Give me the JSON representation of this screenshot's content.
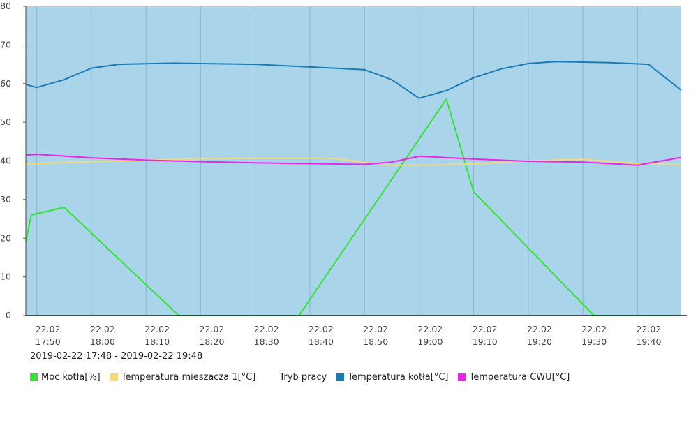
{
  "chart_data": {
    "type": "line",
    "ylim": [
      0,
      80
    ],
    "yticks": [
      0,
      10,
      20,
      30,
      40,
      50,
      60,
      70,
      80
    ],
    "x_range": [
      "2019-02-22 17:48",
      "2019-02-22 19:48"
    ],
    "x_ticks": [
      {
        "t": "2019-02-22 17:50",
        "date": "22.02",
        "time": "17:50"
      },
      {
        "t": "2019-02-22 18:00",
        "date": "22.02",
        "time": "18:00"
      },
      {
        "t": "2019-02-22 18:10",
        "date": "22.02",
        "time": "18:10"
      },
      {
        "t": "2019-02-22 18:20",
        "date": "22.02",
        "time": "18:20"
      },
      {
        "t": "2019-02-22 18:30",
        "date": "22.02",
        "time": "18:30"
      },
      {
        "t": "2019-02-22 18:40",
        "date": "22.02",
        "time": "18:40"
      },
      {
        "t": "2019-02-22 18:50",
        "date": "22.02",
        "time": "18:50"
      },
      {
        "t": "2019-02-22 19:00",
        "date": "22.02",
        "time": "19:00"
      },
      {
        "t": "2019-02-22 19:10",
        "date": "22.02",
        "time": "19:10"
      },
      {
        "t": "2019-02-22 19:20",
        "date": "22.02",
        "time": "19:20"
      },
      {
        "t": "2019-02-22 19:30",
        "date": "22.02",
        "time": "19:30"
      },
      {
        "t": "2019-02-22 19:40",
        "date": "22.02",
        "time": "19:40"
      }
    ],
    "bands": [
      {
        "series": "Tryb pracy",
        "from": "2019-02-22 17:48",
        "to": "2019-02-22 19:48",
        "color": "#aad4ea"
      }
    ],
    "series": [
      {
        "name": "Moc kotła[%]",
        "color": "#33e333",
        "points": [
          [
            "2019-02-22 17:48",
            19
          ],
          [
            "2019-02-22 17:49",
            26
          ],
          [
            "2019-02-22 17:55",
            28
          ],
          [
            "2019-02-22 18:16",
            0
          ],
          [
            "2019-02-22 18:38",
            0
          ],
          [
            "2019-02-22 19:05",
            56
          ],
          [
            "2019-02-22 19:10",
            32
          ],
          [
            "2019-02-22 19:32",
            0
          ],
          [
            "2019-02-22 19:48",
            0
          ]
        ]
      },
      {
        "name": "Temperatura mieszacza 1[°C]",
        "color": "#f5d87a",
        "points": [
          [
            "2019-02-22 17:48",
            39.2
          ],
          [
            "2019-02-22 18:00",
            39.8
          ],
          [
            "2019-02-22 18:10",
            40.2
          ],
          [
            "2019-02-22 18:20",
            40.6
          ],
          [
            "2019-02-22 18:30",
            40.7
          ],
          [
            "2019-02-22 18:40",
            40.7
          ],
          [
            "2019-02-22 18:45",
            40.6
          ],
          [
            "2019-02-22 18:50",
            39.6
          ],
          [
            "2019-02-22 18:55",
            38.8
          ],
          [
            "2019-02-22 19:00",
            38.9
          ],
          [
            "2019-02-22 19:10",
            39.2
          ],
          [
            "2019-02-22 19:20",
            40.0
          ],
          [
            "2019-02-22 19:30",
            40.4
          ],
          [
            "2019-02-22 19:40",
            39.3
          ],
          [
            "2019-02-22 19:48",
            39.0
          ]
        ]
      },
      {
        "name": "Temperatura kotła[°C]",
        "color": "#1a7bb5",
        "points": [
          [
            "2019-02-22 17:48",
            59.8
          ],
          [
            "2019-02-22 17:50",
            59.0
          ],
          [
            "2019-02-22 17:55",
            61.0
          ],
          [
            "2019-02-22 18:00",
            64.0
          ],
          [
            "2019-02-22 18:05",
            65.0
          ],
          [
            "2019-02-22 18:15",
            65.3
          ],
          [
            "2019-02-22 18:30",
            65.0
          ],
          [
            "2019-02-22 18:40",
            64.3
          ],
          [
            "2019-02-22 18:50",
            63.6
          ],
          [
            "2019-02-22 18:55",
            61.0
          ],
          [
            "2019-02-22 19:00",
            56.2
          ],
          [
            "2019-02-22 19:05",
            58.2
          ],
          [
            "2019-02-22 19:10",
            61.5
          ],
          [
            "2019-02-22 19:15",
            63.8
          ],
          [
            "2019-02-22 19:20",
            65.2
          ],
          [
            "2019-02-22 19:25",
            65.7
          ],
          [
            "2019-02-22 19:35",
            65.4
          ],
          [
            "2019-02-22 19:42",
            65.0
          ],
          [
            "2019-02-22 19:48",
            58.3
          ]
        ]
      },
      {
        "name": "Temperatura CWU[°C]",
        "color": "#ee22ee",
        "points": [
          [
            "2019-02-22 17:48",
            41.5
          ],
          [
            "2019-02-22 17:50",
            41.7
          ],
          [
            "2019-02-22 18:00",
            40.8
          ],
          [
            "2019-02-22 18:10",
            40.2
          ],
          [
            "2019-02-22 18:20",
            39.8
          ],
          [
            "2019-02-22 18:30",
            39.5
          ],
          [
            "2019-02-22 18:40",
            39.3
          ],
          [
            "2019-02-22 18:50",
            39.1
          ],
          [
            "2019-02-22 18:55",
            39.7
          ],
          [
            "2019-02-22 19:00",
            41.2
          ],
          [
            "2019-02-22 19:10",
            40.5
          ],
          [
            "2019-02-22 19:20",
            39.9
          ],
          [
            "2019-02-22 19:30",
            39.7
          ],
          [
            "2019-02-22 19:40",
            38.9
          ],
          [
            "2019-02-22 19:48",
            40.9
          ]
        ]
      }
    ]
  },
  "range_label": "2019-02-22 17:48 - 2019-02-22 19:48",
  "legend": [
    {
      "label": "Moc kotła[%]",
      "color": "#33e333"
    },
    {
      "label": "Temperatura mieszacza 1[°C]",
      "color": "#f5d87a"
    },
    {
      "label": "Tryb pracy",
      "color": ""
    },
    {
      "label": "Temperatura kotła[°C]",
      "color": "#1a7bb5"
    },
    {
      "label": "Temperatura CWU[°C]",
      "color": "#ee22ee"
    }
  ]
}
